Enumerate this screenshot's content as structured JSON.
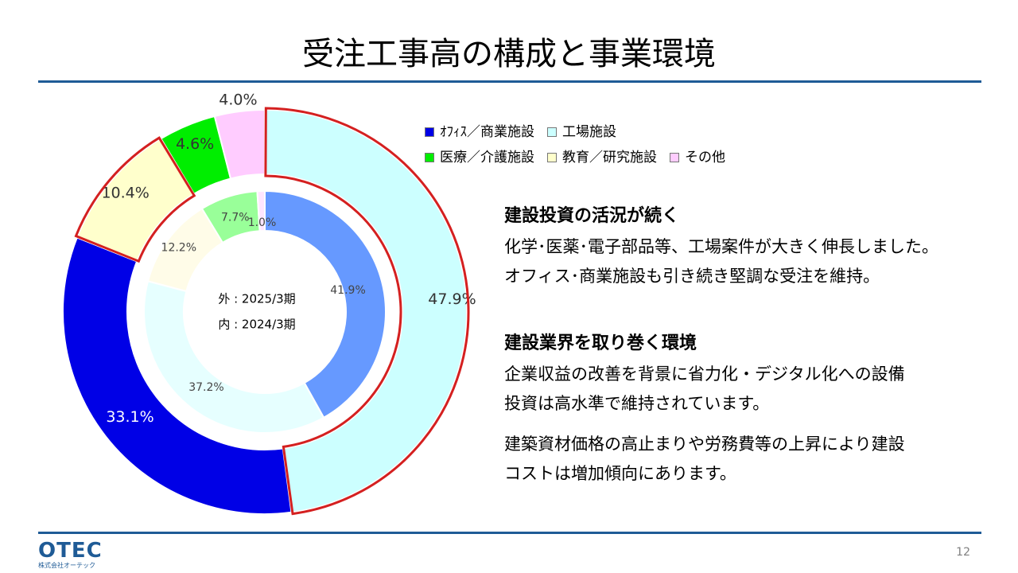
{
  "title": "受注工事高の構成と事業環境",
  "colors": {
    "rule": "#1f5b96",
    "highlight_border": "#d42020"
  },
  "chart_data": {
    "type": "donut",
    "center_labels": [
      "外 : 2025/3期",
      "内 : 2024/3期"
    ],
    "categories": [
      "オフィス／商業施設",
      "工場施設",
      "医療／介護施設",
      "教育／研究施設",
      "その他"
    ],
    "category_colors": [
      "#0000e6",
      "#ccffff",
      "#00ee00",
      "#ffffcc",
      "#ffccff"
    ],
    "series": [
      {
        "ring": "outer",
        "period": "2025/3期",
        "values": [
          33.1,
          47.9,
          4.6,
          10.4,
          4.0
        ],
        "labels": [
          "33.1%",
          "47.9%",
          "4.6%",
          "10.4%",
          "4.0%"
        ],
        "highlighted": [
          "工場施設",
          "教育／研究施設"
        ]
      },
      {
        "ring": "inner",
        "period": "2024/3期",
        "values": [
          37.2,
          41.9,
          7.7,
          12.2,
          1.0
        ],
        "labels": [
          "37.2%",
          "41.9%",
          "7.7%",
          "12.2%",
          "1.0%"
        ],
        "colors": [
          "#e6ffff",
          "#6699ff",
          "#99ff99",
          "#fffce8",
          "#ffe6ff"
        ]
      }
    ]
  },
  "legend": {
    "items": [
      {
        "label": "ｵﾌｨｽ／商業施設",
        "color": "#0000e6"
      },
      {
        "label": "工場施設",
        "color": "#ccffff"
      },
      {
        "label": "医療／介護施設",
        "color": "#00ee00"
      },
      {
        "label": "教育／研究施設",
        "color": "#ffffcc"
      },
      {
        "label": "その他",
        "color": "#ffccff"
      }
    ]
  },
  "sections": [
    {
      "heading": "建設投資の活況が続く",
      "lines": [
        "化学･医薬･電子部品等、工場案件が大きく伸長しました。",
        "オフィス･商業施設も引き続き堅調な受注を維持。"
      ]
    },
    {
      "heading": "建設業界を取り巻く環境",
      "lines": [
        "企業収益の改善を背景に省力化・デジタル化への設備",
        "投資は高水準で維持されています。",
        "建築資材価格の高止まりや労務費等の上昇により建設",
        "コストは増加傾向にあります。"
      ]
    }
  ],
  "logo": {
    "mark": "OTEC",
    "sub": "株式会社オーテック"
  },
  "page_number": "12"
}
